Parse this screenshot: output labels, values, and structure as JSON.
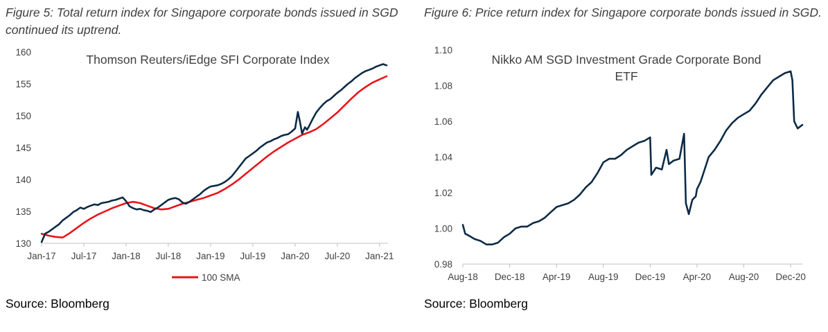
{
  "figure5": {
    "title": "Figure 5: Total return index for Singapore corporate bonds issued in SGD continued its uptrend.",
    "source": "Source: Bloomberg"
  },
  "figure6": {
    "title": "Figure 6: Price return index for Singapore corporate bonds issued in SGD.",
    "source": "Source: Bloomberg"
  },
  "colors": {
    "index_line": "#0d2a45",
    "sma_line": "#e8141a",
    "text": "#404040"
  },
  "chart_data": [
    {
      "type": "line",
      "title": "Thomson Reuters/iEdge SFI Corporate Index",
      "xlabel": "",
      "ylabel": "",
      "ylim": [
        130,
        160
      ],
      "yticks": [
        130,
        135,
        140,
        145,
        150,
        155,
        160
      ],
      "xlim": [
        0,
        49.2
      ],
      "xticks": [
        {
          "label": "Jan-17",
          "x": 0
        },
        {
          "label": "Jul-17",
          "x": 6
        },
        {
          "label": "Jan-18",
          "x": 12
        },
        {
          "label": "Jul-18",
          "x": 18
        },
        {
          "label": "Jan-19",
          "x": 24
        },
        {
          "label": "Jul-19",
          "x": 30
        },
        {
          "label": "Jan-20",
          "x": 36
        },
        {
          "label": "Jul-20",
          "x": 42
        },
        {
          "label": "Jan-21",
          "x": 48
        }
      ],
      "grid": false,
      "legend_position": "bottom",
      "series": [
        {
          "name": "",
          "color": "#0d2a45",
          "points": [
            [
              0,
              130.2
            ],
            [
              0.5,
              131.5
            ],
            [
              1,
              131.8
            ],
            [
              1.5,
              132.2
            ],
            [
              2,
              132.6
            ],
            [
              2.5,
              133.0
            ],
            [
              3,
              133.6
            ],
            [
              3.5,
              134.0
            ],
            [
              4,
              134.4
            ],
            [
              4.5,
              134.9
            ],
            [
              5,
              135.2
            ],
            [
              5.5,
              135.6
            ],
            [
              6,
              135.4
            ],
            [
              6.5,
              135.7
            ],
            [
              7,
              135.9
            ],
            [
              7.5,
              136.1
            ],
            [
              8,
              136.0
            ],
            [
              8.5,
              136.3
            ],
            [
              9,
              136.4
            ],
            [
              9.5,
              136.5
            ],
            [
              10,
              136.7
            ],
            [
              10.5,
              136.8
            ],
            [
              11,
              137.0
            ],
            [
              11.5,
              137.2
            ],
            [
              12,
              136.6
            ],
            [
              12.5,
              135.8
            ],
            [
              13,
              135.5
            ],
            [
              13.5,
              135.3
            ],
            [
              14,
              135.4
            ],
            [
              14.5,
              135.2
            ],
            [
              15,
              135.1
            ],
            [
              15.5,
              134.9
            ],
            [
              16,
              135.3
            ],
            [
              16.5,
              135.6
            ],
            [
              17,
              136.0
            ],
            [
              17.5,
              136.4
            ],
            [
              18,
              136.8
            ],
            [
              18.5,
              137.0
            ],
            [
              19,
              137.1
            ],
            [
              19.5,
              136.9
            ],
            [
              20,
              136.4
            ],
            [
              20.5,
              136.2
            ],
            [
              21,
              136.5
            ],
            [
              21.5,
              136.9
            ],
            [
              22,
              137.3
            ],
            [
              22.5,
              137.7
            ],
            [
              23,
              138.2
            ],
            [
              23.5,
              138.6
            ],
            [
              24,
              138.9
            ],
            [
              24.5,
              139.0
            ],
            [
              25,
              139.1
            ],
            [
              25.5,
              139.3
            ],
            [
              26,
              139.6
            ],
            [
              26.5,
              140.0
            ],
            [
              27,
              140.5
            ],
            [
              27.5,
              141.2
            ],
            [
              28,
              141.9
            ],
            [
              28.5,
              142.6
            ],
            [
              29,
              143.3
            ],
            [
              29.5,
              143.7
            ],
            [
              30,
              144.1
            ],
            [
              30.5,
              144.5
            ],
            [
              31,
              145.0
            ],
            [
              31.5,
              145.4
            ],
            [
              32,
              145.8
            ],
            [
              32.5,
              146.0
            ],
            [
              33,
              146.3
            ],
            [
              33.5,
              146.5
            ],
            [
              34,
              146.8
            ],
            [
              34.5,
              147.0
            ],
            [
              35,
              147.1
            ],
            [
              35.5,
              147.5
            ],
            [
              36,
              148.0
            ],
            [
              36.4,
              150.6
            ],
            [
              36.7,
              149.0
            ],
            [
              37,
              147.2
            ],
            [
              37.4,
              148.2
            ],
            [
              37.7,
              147.8
            ],
            [
              38,
              148.4
            ],
            [
              38.5,
              149.5
            ],
            [
              39,
              150.5
            ],
            [
              39.5,
              151.2
            ],
            [
              40,
              151.8
            ],
            [
              40.5,
              152.3
            ],
            [
              41,
              152.6
            ],
            [
              41.5,
              153.1
            ],
            [
              42,
              153.6
            ],
            [
              42.5,
              154.0
            ],
            [
              43,
              154.5
            ],
            [
              43.5,
              155.0
            ],
            [
              44,
              155.4
            ],
            [
              44.5,
              155.9
            ],
            [
              45,
              156.3
            ],
            [
              45.5,
              156.7
            ],
            [
              46,
              157.0
            ],
            [
              46.5,
              157.2
            ],
            [
              47,
              157.4
            ],
            [
              47.5,
              157.7
            ],
            [
              48,
              157.9
            ],
            [
              48.5,
              158.1
            ],
            [
              49,
              157.9
            ]
          ]
        },
        {
          "name": "100 SMA",
          "color": "#e8141a",
          "points": [
            [
              0,
              131.5
            ],
            [
              1,
              131.2
            ],
            [
              2,
              131.0
            ],
            [
              3,
              130.9
            ],
            [
              4,
              131.6
            ],
            [
              5,
              132.4
            ],
            [
              6,
              133.2
            ],
            [
              7,
              133.9
            ],
            [
              8,
              134.5
            ],
            [
              9,
              135.0
            ],
            [
              10,
              135.5
            ],
            [
              11,
              135.9
            ],
            [
              12,
              136.3
            ],
            [
              13,
              136.5
            ],
            [
              14,
              136.3
            ],
            [
              15,
              135.9
            ],
            [
              16,
              135.5
            ],
            [
              17,
              135.3
            ],
            [
              18,
              135.4
            ],
            [
              19,
              135.8
            ],
            [
              20,
              136.2
            ],
            [
              21,
              136.5
            ],
            [
              22,
              136.8
            ],
            [
              23,
              137.1
            ],
            [
              24,
              137.5
            ],
            [
              25,
              137.9
            ],
            [
              26,
              138.5
            ],
            [
              27,
              139.2
            ],
            [
              28,
              140.0
            ],
            [
              29,
              140.9
            ],
            [
              30,
              141.8
            ],
            [
              31,
              142.7
            ],
            [
              32,
              143.6
            ],
            [
              33,
              144.4
            ],
            [
              34,
              145.1
            ],
            [
              35,
              145.8
            ],
            [
              36,
              146.4
            ],
            [
              37,
              147.0
            ],
            [
              38,
              147.4
            ],
            [
              39,
              147.9
            ],
            [
              40,
              148.7
            ],
            [
              41,
              149.6
            ],
            [
              42,
              150.5
            ],
            [
              43,
              151.6
            ],
            [
              44,
              152.7
            ],
            [
              45,
              153.7
            ],
            [
              46,
              154.5
            ],
            [
              47,
              155.2
            ],
            [
              48,
              155.7
            ],
            [
              49,
              156.2
            ]
          ]
        }
      ]
    },
    {
      "type": "line",
      "title": "Nikko AM SGD Investment Grade Corporate Bond ETF",
      "xlabel": "",
      "ylabel": "",
      "ylim": [
        0.98,
        1.1
      ],
      "yticks": [
        "0.98",
        "1.00",
        "1.02",
        "1.04",
        "1.06",
        "1.08",
        "1.10"
      ],
      "xlim": [
        0,
        29
      ],
      "xticks": [
        {
          "label": "Aug-18",
          "x": 0
        },
        {
          "label": "Dec-18",
          "x": 4
        },
        {
          "label": "Apr-19",
          "x": 8
        },
        {
          "label": "Aug-19",
          "x": 12
        },
        {
          "label": "Dec-19",
          "x": 16
        },
        {
          "label": "Apr-20",
          "x": 20
        },
        {
          "label": "Aug-20",
          "x": 24
        },
        {
          "label": "Dec-20",
          "x": 28
        }
      ],
      "grid": false,
      "series": [
        {
          "name": "",
          "color": "#0d2a45",
          "points": [
            [
              0,
              1.002
            ],
            [
              0.2,
              0.997
            ],
            [
              0.5,
              0.996
            ],
            [
              1,
              0.994
            ],
            [
              1.5,
              0.993
            ],
            [
              2,
              0.991
            ],
            [
              2.5,
              0.991
            ],
            [
              3,
              0.992
            ],
            [
              3.5,
              0.995
            ],
            [
              4,
              0.997
            ],
            [
              4.5,
              1.0
            ],
            [
              5,
              1.001
            ],
            [
              5.5,
              1.001
            ],
            [
              6,
              1.003
            ],
            [
              6.5,
              1.004
            ],
            [
              7,
              1.006
            ],
            [
              7.5,
              1.009
            ],
            [
              8,
              1.012
            ],
            [
              8.5,
              1.013
            ],
            [
              9,
              1.014
            ],
            [
              9.5,
              1.016
            ],
            [
              10,
              1.019
            ],
            [
              10.5,
              1.023
            ],
            [
              11,
              1.026
            ],
            [
              11.5,
              1.031
            ],
            [
              12,
              1.037
            ],
            [
              12.5,
              1.039
            ],
            [
              13,
              1.039
            ],
            [
              13.5,
              1.041
            ],
            [
              14,
              1.044
            ],
            [
              14.5,
              1.046
            ],
            [
              15,
              1.048
            ],
            [
              15.5,
              1.049
            ],
            [
              16,
              1.051
            ],
            [
              16.1,
              1.03
            ],
            [
              16.5,
              1.034
            ],
            [
              17,
              1.033
            ],
            [
              17.4,
              1.044
            ],
            [
              17.6,
              1.036
            ],
            [
              18,
              1.038
            ],
            [
              18.5,
              1.039
            ],
            [
              18.9,
              1.053
            ],
            [
              19.05,
              1.014
            ],
            [
              19.3,
              1.008
            ],
            [
              19.6,
              1.016
            ],
            [
              19.9,
              1.018
            ],
            [
              20,
              1.022
            ],
            [
              20.3,
              1.026
            ],
            [
              20.6,
              1.032
            ],
            [
              21,
              1.04
            ],
            [
              21.5,
              1.044
            ],
            [
              22,
              1.049
            ],
            [
              22.5,
              1.055
            ],
            [
              23,
              1.059
            ],
            [
              23.5,
              1.062
            ],
            [
              24,
              1.064
            ],
            [
              24.5,
              1.066
            ],
            [
              25,
              1.07
            ],
            [
              25.5,
              1.075
            ],
            [
              26,
              1.079
            ],
            [
              26.5,
              1.083
            ],
            [
              27,
              1.085
            ],
            [
              27.5,
              1.087
            ],
            [
              28,
              1.088
            ],
            [
              28.15,
              1.083
            ],
            [
              28.3,
              1.06
            ],
            [
              28.6,
              1.056
            ],
            [
              29,
              1.058
            ]
          ]
        }
      ]
    }
  ]
}
